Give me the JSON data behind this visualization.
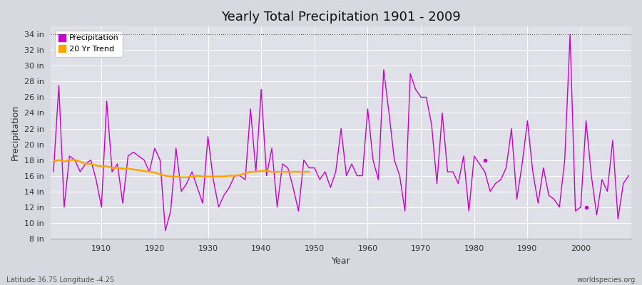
{
  "title": "Yearly Total Precipitation 1901 - 2009",
  "xlabel": "Year",
  "ylabel": "Precipitation",
  "subtitle_left": "Latitude 36.75 Longitude -4.25",
  "subtitle_right": "worldspecies.org",
  "ylim": [
    8,
    35
  ],
  "yticks": [
    8,
    10,
    12,
    14,
    16,
    18,
    20,
    22,
    24,
    26,
    28,
    30,
    32,
    34
  ],
  "ytick_labels": [
    "8 in",
    "10 in",
    "12 in",
    "14 in",
    "16 in",
    "18 in",
    "20 in",
    "22 in",
    "24 in",
    "26 in",
    "28 in",
    "30 in",
    "32 in",
    "34 in"
  ],
  "xticks": [
    1910,
    1920,
    1930,
    1940,
    1950,
    1960,
    1970,
    1980,
    1990,
    2000
  ],
  "precip_color": "#cc00cc",
  "trend_color": "#FFA500",
  "fig_bg_color": "#d8d8e0",
  "plot_bg_color": "#e0e0e8",
  "grid_color": "#ffffff",
  "years": [
    1901,
    1902,
    1903,
    1904,
    1905,
    1906,
    1907,
    1908,
    1909,
    1910,
    1911,
    1912,
    1913,
    1914,
    1915,
    1916,
    1917,
    1918,
    1919,
    1920,
    1921,
    1922,
    1923,
    1924,
    1925,
    1926,
    1927,
    1928,
    1929,
    1930,
    1931,
    1932,
    1933,
    1934,
    1935,
    1936,
    1937,
    1938,
    1939,
    1940,
    1941,
    1942,
    1943,
    1944,
    1945,
    1946,
    1947,
    1948,
    1949,
    1950,
    1951,
    1952,
    1953,
    1954,
    1955,
    1956,
    1957,
    1958,
    1959,
    1960,
    1961,
    1962,
    1963,
    1964,
    1965,
    1966,
    1967,
    1968,
    1969,
    1970,
    1971,
    1972,
    1973,
    1974,
    1975,
    1976,
    1977,
    1978,
    1979,
    1980,
    1981,
    1982,
    1983,
    1984,
    1985,
    1986,
    1987,
    1988,
    1989,
    1990,
    1991,
    1992,
    1993,
    1994,
    1995,
    1996,
    1997,
    1998,
    1999,
    2000,
    2001,
    2002,
    2003,
    2004,
    2005,
    2006,
    2007,
    2008,
    2009
  ],
  "precip": [
    16.5,
    27.5,
    12.0,
    18.5,
    18.0,
    16.5,
    17.5,
    18.0,
    15.5,
    12.0,
    25.5,
    16.5,
    17.5,
    12.5,
    18.5,
    19.0,
    18.5,
    18.0,
    16.5,
    19.5,
    18.0,
    9.0,
    11.5,
    19.5,
    14.0,
    15.0,
    16.5,
    14.5,
    12.5,
    21.0,
    15.5,
    12.0,
    13.5,
    14.5,
    16.0,
    16.0,
    15.5,
    24.5,
    16.5,
    27.0,
    16.0,
    19.5,
    12.0,
    17.5,
    17.0,
    14.5,
    11.5,
    18.0,
    17.0,
    17.0,
    15.5,
    16.5,
    14.5,
    16.5,
    22.0,
    16.0,
    17.5,
    16.0,
    16.0,
    24.5,
    18.0,
    15.5,
    29.5,
    24.0,
    18.0,
    16.0,
    11.5,
    29.0,
    27.0,
    26.0,
    26.0,
    22.5,
    15.0,
    24.0,
    16.5,
    16.5,
    15.0,
    18.5,
    11.5,
    18.5,
    17.5,
    16.5,
    14.0,
    15.0,
    15.5,
    17.0,
    22.0,
    13.0,
    17.5,
    23.0,
    16.5,
    12.5,
    17.0,
    13.5,
    13.0,
    12.0,
    18.0,
    34.0,
    11.5,
    12.0,
    23.0,
    16.0,
    11.0,
    15.5,
    14.0,
    20.5,
    10.5,
    15.0,
    16.0
  ],
  "trend_years": [
    1901,
    1902,
    1903,
    1904,
    1905,
    1906,
    1907,
    1908,
    1909,
    1910,
    1911,
    1912,
    1913,
    1914,
    1915,
    1916,
    1917,
    1918,
    1919,
    1920,
    1921,
    1922,
    1923,
    1924,
    1925,
    1926,
    1927,
    1928,
    1929,
    1930,
    1931,
    1932,
    1933,
    1934,
    1935,
    1936,
    1937,
    1938,
    1939,
    1940,
    1941,
    1942,
    1943,
    1944,
    1945,
    1946,
    1947,
    1948,
    1949
  ],
  "trend": [
    17.8,
    18.0,
    17.8,
    18.0,
    18.0,
    17.8,
    17.5,
    17.5,
    17.3,
    17.2,
    17.2,
    17.0,
    17.0,
    16.9,
    16.9,
    16.8,
    16.7,
    16.6,
    16.5,
    16.4,
    16.2,
    16.0,
    15.9,
    15.9,
    15.8,
    15.8,
    15.9,
    16.0,
    15.9,
    15.9,
    15.9,
    15.9,
    15.9,
    16.0,
    16.0,
    16.1,
    16.3,
    16.5,
    16.5,
    16.6,
    16.6,
    16.5,
    16.5,
    16.5,
    16.5,
    16.5,
    16.5,
    16.5,
    16.5
  ],
  "isolated_points": [
    [
      1982,
      18.0
    ],
    [
      2001,
      12.0
    ]
  ],
  "title_fontsize": 13,
  "axis_label_fontsize": 9,
  "tick_fontsize": 8,
  "legend_fontsize": 8,
  "top_dotted_line": 34
}
